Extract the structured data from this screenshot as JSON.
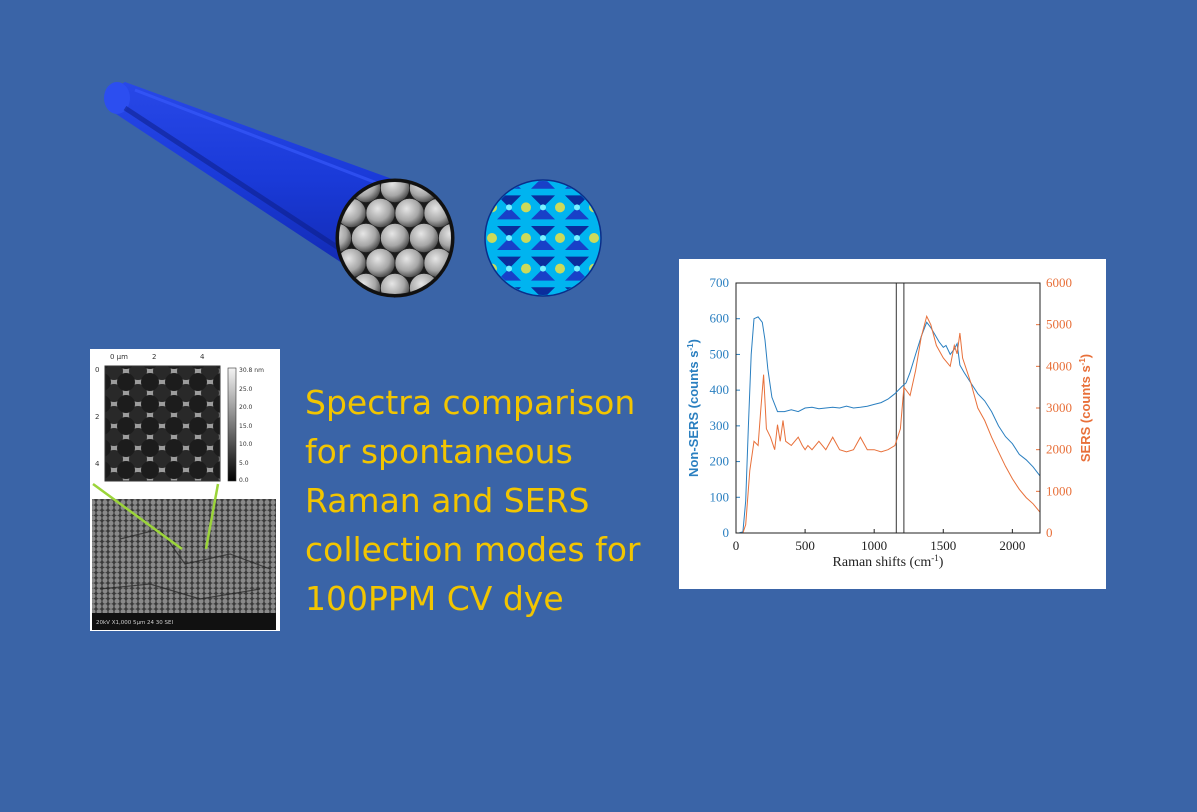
{
  "caption": "Spectra comparison\nfor spontaneous\nRaman and SERS\ncollection modes for\n100PPM CV dye",
  "afm": {
    "top_ticks": [
      "0 μm",
      "2",
      "4"
    ],
    "left_ticks": [
      "0",
      "2",
      "4"
    ],
    "scale_labels": [
      "30.8 nm",
      "25.0",
      "20.0",
      "15.0",
      "10.0",
      "5.0",
      "0.0"
    ],
    "sem_footer": "20kV  X1,000  5μm  24 30 SEI"
  },
  "colors": {
    "background": "#3a64a7",
    "caption": "#f2c500",
    "non_sers": "#2a7fc0",
    "sers": "#e8703a"
  },
  "chart_data": {
    "type": "line",
    "xlabel": "Raman shifts (cm",
    "xlabel_sup": "-1",
    "xlabel_tail": ")",
    "ylabel_left": "Non-SERS (counts s",
    "ylabel_left_sup": "-1",
    "ylabel_left_tail": ")",
    "ylabel_right": "SERS (counts s",
    "ylabel_right_sup": "-1",
    "ylabel_right_tail": ")",
    "xlim": [
      0,
      2200
    ],
    "ylim_left": [
      0,
      700
    ],
    "ylim_right": [
      0,
      6000
    ],
    "xticks": [
      "0",
      "500",
      "1000",
      "1500",
      "2000"
    ],
    "yticks_left": [
      "0",
      "100",
      "200",
      "300",
      "400",
      "500",
      "600",
      "700"
    ],
    "yticks_right": [
      "0",
      "1000",
      "2000",
      "3000",
      "4000",
      "5000",
      "6000"
    ],
    "vertical_lines": [
      1160,
      1215
    ],
    "series": [
      {
        "axis": "left",
        "color": "#2a7fc0",
        "x": [
          0,
          20,
          50,
          70,
          90,
          110,
          130,
          160,
          190,
          210,
          230,
          260,
          300,
          350,
          400,
          450,
          500,
          550,
          600,
          650,
          700,
          750,
          800,
          850,
          900,
          950,
          1000,
          1050,
          1100,
          1150,
          1200,
          1230,
          1260,
          1300,
          1340,
          1380,
          1410,
          1440,
          1470,
          1500,
          1520,
          1550,
          1580,
          1600,
          1620,
          1650,
          1700,
          1750,
          1800,
          1850,
          1900,
          1950,
          2000,
          2050,
          2100,
          2150,
          2200
        ],
        "y": [
          0,
          0,
          3,
          90,
          300,
          500,
          600,
          605,
          590,
          540,
          460,
          380,
          340,
          340,
          345,
          340,
          350,
          352,
          348,
          350,
          352,
          350,
          355,
          350,
          352,
          355,
          360,
          365,
          375,
          390,
          410,
          420,
          450,
          500,
          550,
          590,
          575,
          555,
          535,
          520,
          525,
          500,
          515,
          530,
          470,
          450,
          420,
          390,
          370,
          340,
          300,
          270,
          250,
          220,
          205,
          185,
          160
        ]
      },
      {
        "axis": "right",
        "color": "#e8703a",
        "x": [
          0,
          50,
          70,
          100,
          130,
          160,
          180,
          200,
          220,
          250,
          280,
          300,
          320,
          340,
          360,
          400,
          450,
          480,
          500,
          520,
          550,
          600,
          650,
          700,
          750,
          800,
          850,
          900,
          950,
          1000,
          1050,
          1100,
          1150,
          1190,
          1215,
          1260,
          1300,
          1340,
          1380,
          1410,
          1450,
          1500,
          1550,
          1580,
          1600,
          1620,
          1640,
          1700,
          1750,
          1800,
          1850,
          1900,
          1950,
          2000,
          2050,
          2100,
          2150,
          2200
        ],
        "y": [
          0,
          0,
          200,
          1500,
          2200,
          2100,
          3000,
          3800,
          2500,
          2300,
          2000,
          2600,
          2200,
          2700,
          2200,
          2100,
          2300,
          2100,
          2000,
          2100,
          2000,
          2200,
          2000,
          2300,
          2000,
          1950,
          2000,
          2300,
          2000,
          2000,
          1950,
          2000,
          2100,
          2500,
          3500,
          3300,
          3900,
          4700,
          5200,
          5000,
          4500,
          4200,
          4000,
          4500,
          4300,
          4800,
          4200,
          3600,
          3000,
          2700,
          2300,
          1950,
          1600,
          1300,
          1050,
          850,
          700,
          500
        ]
      }
    ]
  }
}
